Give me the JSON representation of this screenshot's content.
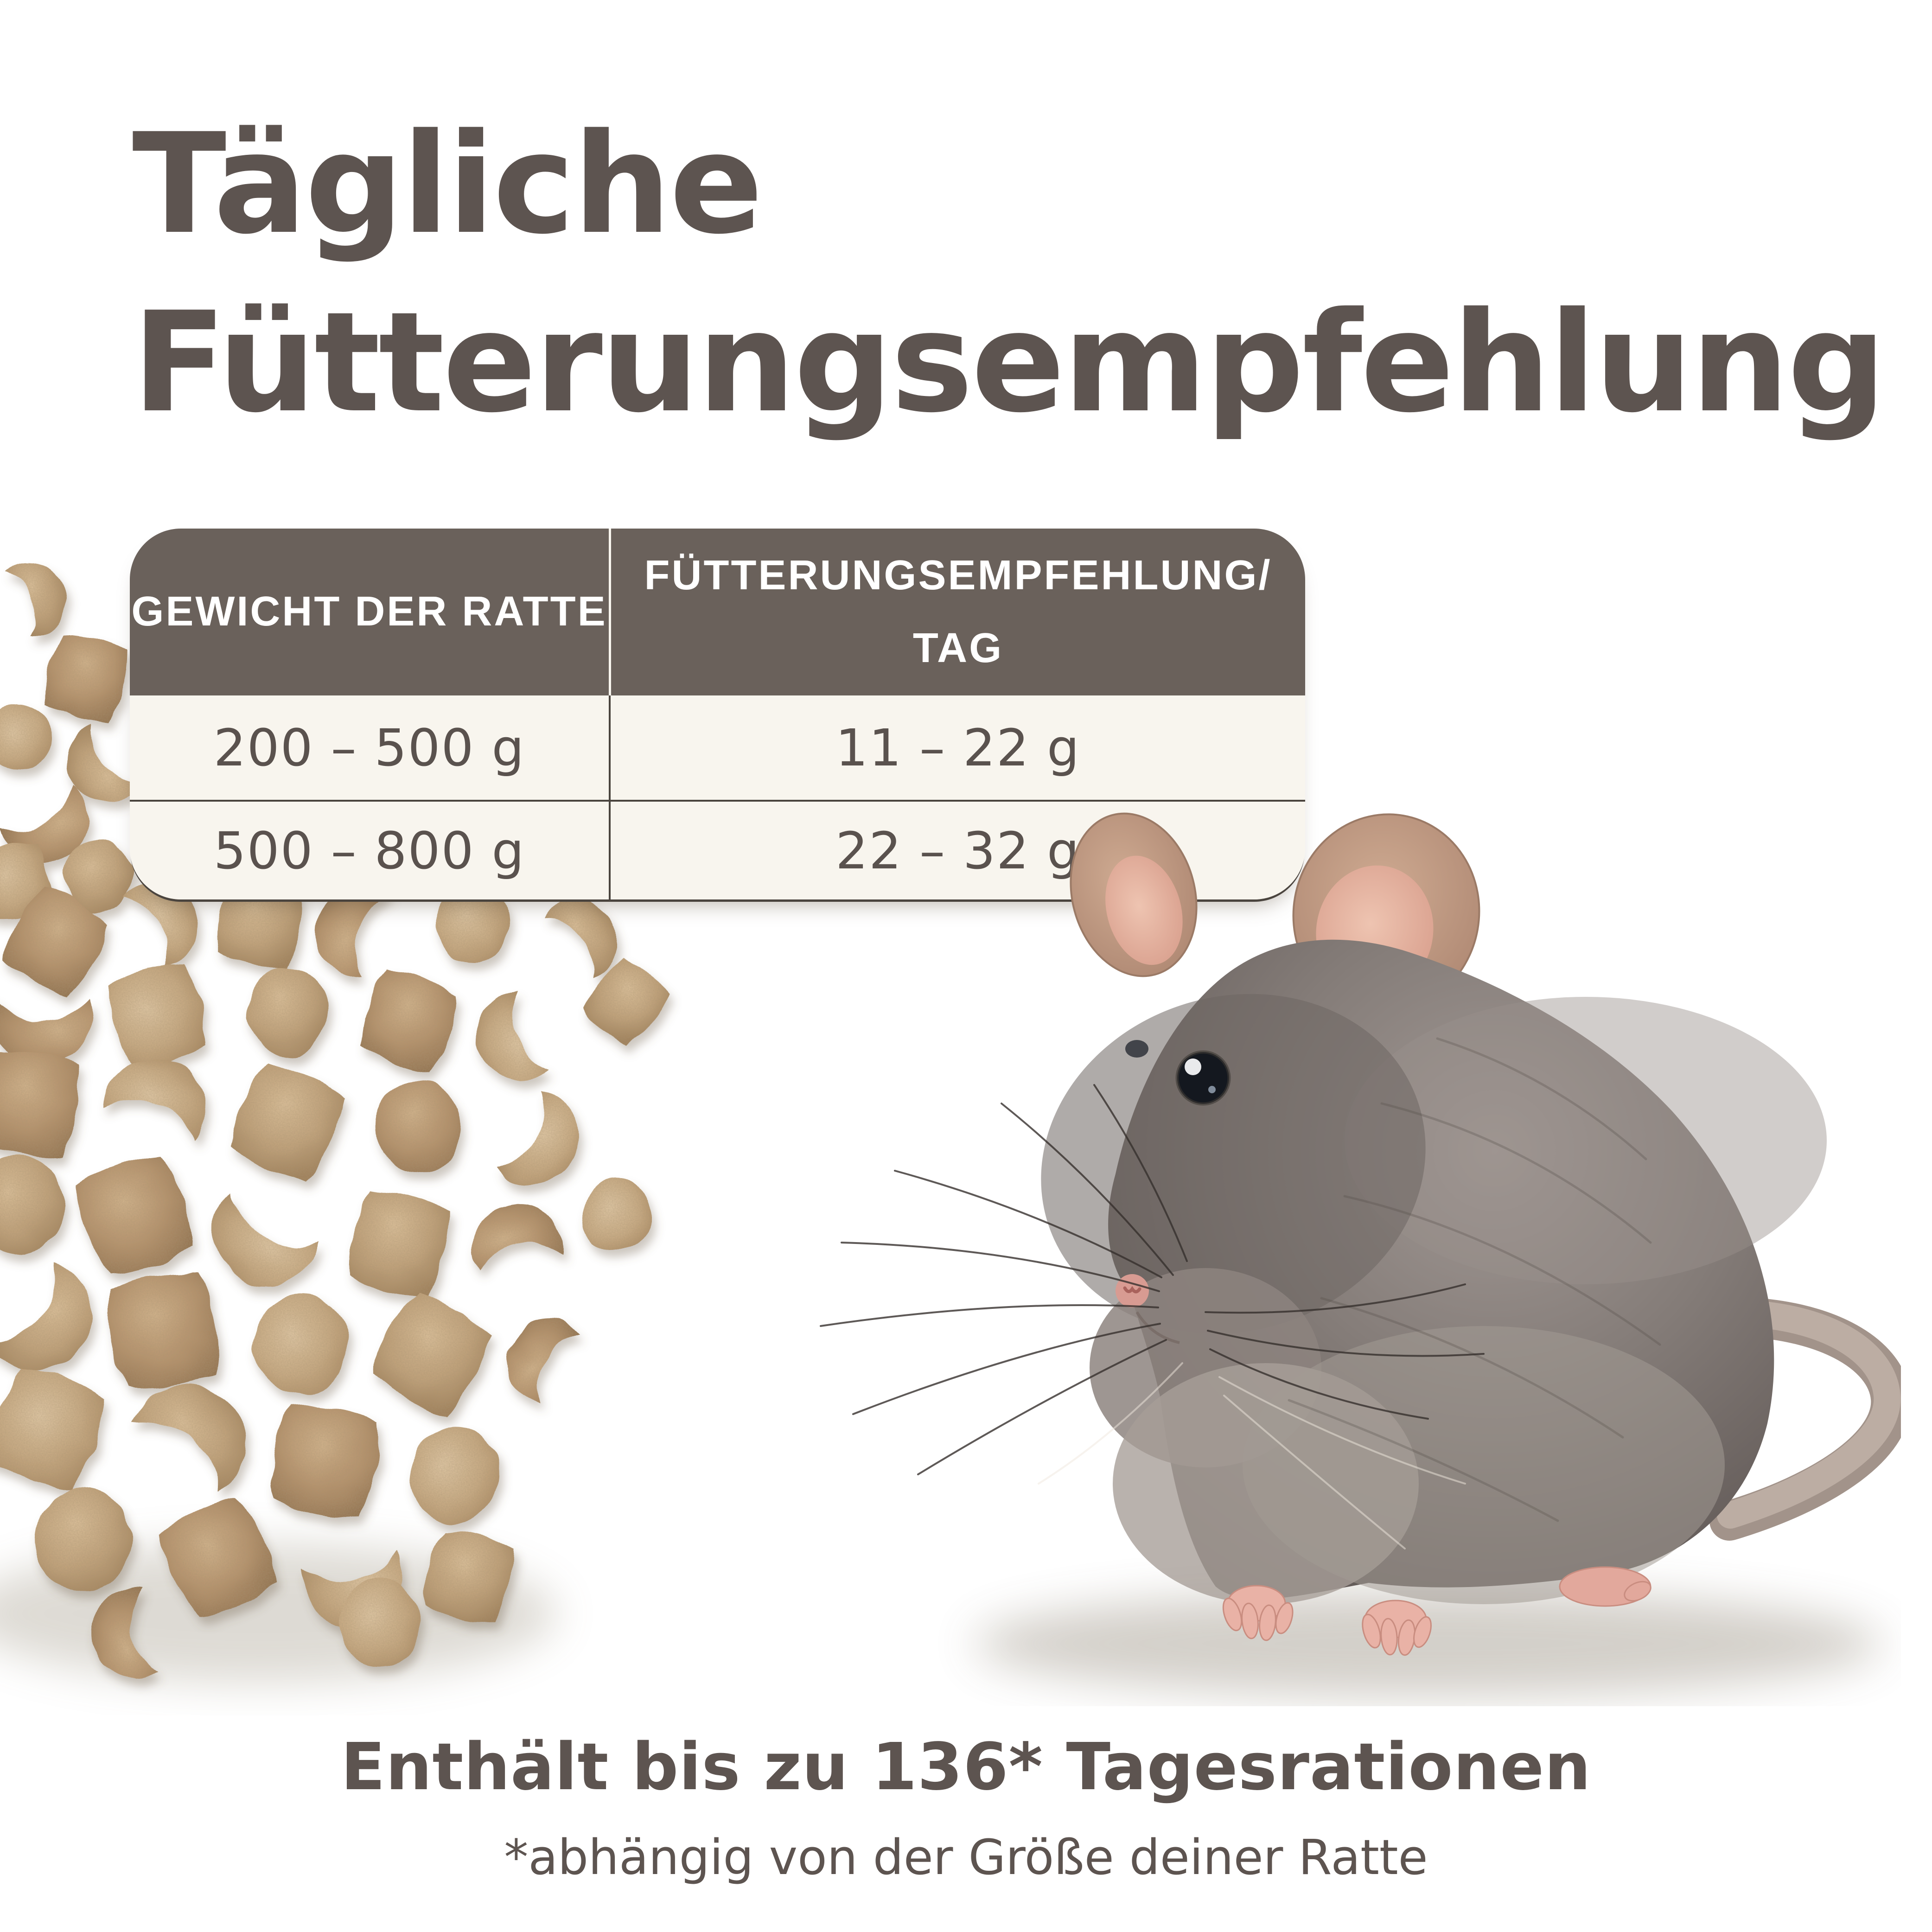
{
  "title": {
    "line1": "Tägliche",
    "line2": "Fütterungsempfehlung"
  },
  "table": {
    "col_headers": [
      "GEWICHT DER RATTE",
      "FÜTTERUNGSEMPFEHLUNG/ TAG"
    ],
    "rows": [
      {
        "weight": "200 – 500 g",
        "amount": "11 – 22 g"
      },
      {
        "weight": "500 – 800 g",
        "amount": "22 – 32 g"
      }
    ]
  },
  "footer": {
    "headline": "Enthält bis zu 136* Tagesrationen",
    "note": "*abhängig von der Größe deiner Ratte"
  },
  "images": {
    "pellets": "food-pellets-photo",
    "rat": "gray-rat-photo"
  },
  "colors": {
    "background": "#ebe5d6",
    "title_text": "#5d5450",
    "table_header_bg": "#6a615b",
    "table_header_text": "#ffffff",
    "table_row_bg": "#f8f5ee",
    "table_row_text": "#5a524e",
    "divider_dark": "#4a443e",
    "divider_light": "#f8f5ee",
    "pellet_tan": "#c0a178",
    "rat_fur_gray": "#837b77"
  }
}
